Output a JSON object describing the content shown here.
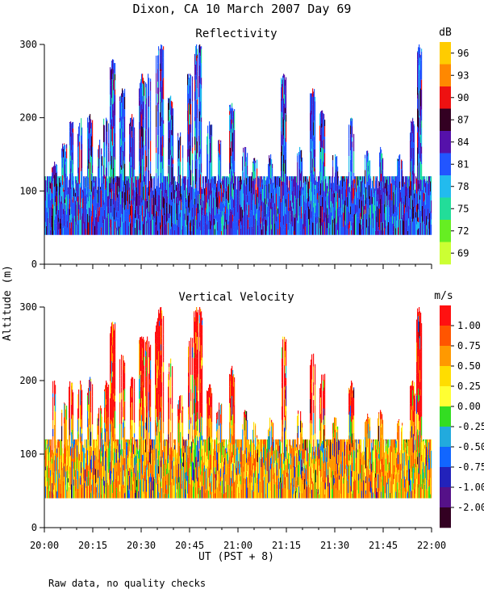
{
  "figure": {
    "title": "Dixon, CA 10 March 2007  Day  69",
    "ylabel": "Altitude (m)",
    "xlabel": "UT  (PST + 8)",
    "footnote": "Raw data, no quality checks"
  },
  "chart_data": [
    {
      "type": "heatmap",
      "title": "Reflectivity",
      "colorbar_unit": "dB",
      "xlim": [
        0,
        120
      ],
      "ylim": [
        0,
        300
      ],
      "x_ticks": [
        0,
        15,
        30,
        45,
        60,
        75,
        90,
        105,
        120
      ],
      "y_ticks": [
        0,
        100,
        200,
        300
      ],
      "y_tick_labels": [
        "0",
        "100",
        "200",
        "300"
      ],
      "colorbar_labels": [
        "69",
        "72",
        "75",
        "78",
        "81",
        "84",
        "87",
        "90",
        "93",
        "96"
      ],
      "colorbar_colors": [
        "#ccff33",
        "#66ee22",
        "#22dd99",
        "#22bbee",
        "#2255ff",
        "#5511aa",
        "#330022",
        "#ee1111",
        "#ff8800",
        "#ffcc00"
      ],
      "data_base_altitude": 40,
      "typical_top_altitude": 120,
      "plume_peaks": [
        {
          "time": 3,
          "top": 140
        },
        {
          "time": 6,
          "top": 165
        },
        {
          "time": 8,
          "top": 195
        },
        {
          "time": 11,
          "top": 200
        },
        {
          "time": 14,
          "top": 205
        },
        {
          "time": 17,
          "top": 170
        },
        {
          "time": 19,
          "top": 200
        },
        {
          "time": 21,
          "top": 280
        },
        {
          "time": 24,
          "top": 240
        },
        {
          "time": 27,
          "top": 205
        },
        {
          "time": 30,
          "top": 260
        },
        {
          "time": 32,
          "top": 260
        },
        {
          "time": 35,
          "top": 285
        },
        {
          "time": 36,
          "top": 300
        },
        {
          "time": 39,
          "top": 230
        },
        {
          "time": 42,
          "top": 180
        },
        {
          "time": 45,
          "top": 260
        },
        {
          "time": 47,
          "top": 300
        },
        {
          "time": 48,
          "top": 300
        },
        {
          "time": 51,
          "top": 195
        },
        {
          "time": 54,
          "top": 170
        },
        {
          "time": 58,
          "top": 220
        },
        {
          "time": 62,
          "top": 160
        },
        {
          "time": 65,
          "top": 145
        },
        {
          "time": 70,
          "top": 150
        },
        {
          "time": 74,
          "top": 260
        },
        {
          "time": 79,
          "top": 160
        },
        {
          "time": 83,
          "top": 240
        },
        {
          "time": 86,
          "top": 210
        },
        {
          "time": 90,
          "top": 150
        },
        {
          "time": 95,
          "top": 200
        },
        {
          "time": 100,
          "top": 155
        },
        {
          "time": 104,
          "top": 160
        },
        {
          "time": 110,
          "top": 150
        },
        {
          "time": 114,
          "top": 200
        },
        {
          "time": 116,
          "top": 300
        }
      ]
    },
    {
      "type": "heatmap",
      "title": "Vertical Velocity",
      "colorbar_unit": "m/s",
      "xlim": [
        0,
        120
      ],
      "ylim": [
        0,
        300
      ],
      "x_ticks": [
        0,
        15,
        30,
        45,
        60,
        75,
        90,
        105,
        120
      ],
      "x_tick_labels": [
        "20:00",
        "20:15",
        "20:30",
        "20:45",
        "21:00",
        "21:15",
        "21:30",
        "21:45",
        "22:00"
      ],
      "y_ticks": [
        0,
        100,
        200,
        300
      ],
      "y_tick_labels": [
        "0",
        "100",
        "200",
        "300"
      ],
      "colorbar_labels": [
        "1.00",
        "0.75",
        "0.50",
        "0.25",
        "0.00",
        "-0.25",
        "-0.50",
        "-0.75",
        "-1.00",
        "-2.00"
      ],
      "colorbar_colors": [
        "#ff1111",
        "#ff5500",
        "#ff9900",
        "#ffdd00",
        "#ffff33",
        "#33dd22",
        "#22aadd",
        "#1166ff",
        "#2222bb",
        "#551188",
        "#330022"
      ],
      "data_base_altitude": 40,
      "typical_top_altitude": 120,
      "plume_peaks": [
        {
          "time": 3,
          "top": 200
        },
        {
          "time": 6,
          "top": 170
        },
        {
          "time": 8,
          "top": 200
        },
        {
          "time": 11,
          "top": 200
        },
        {
          "time": 14,
          "top": 205
        },
        {
          "time": 17,
          "top": 170
        },
        {
          "time": 19,
          "top": 200
        },
        {
          "time": 21,
          "top": 280
        },
        {
          "time": 24,
          "top": 240
        },
        {
          "time": 27,
          "top": 205
        },
        {
          "time": 30,
          "top": 260
        },
        {
          "time": 32,
          "top": 260
        },
        {
          "time": 35,
          "top": 285
        },
        {
          "time": 36,
          "top": 300
        },
        {
          "time": 39,
          "top": 230
        },
        {
          "time": 42,
          "top": 180
        },
        {
          "time": 45,
          "top": 260
        },
        {
          "time": 47,
          "top": 300
        },
        {
          "time": 48,
          "top": 300
        },
        {
          "time": 51,
          "top": 195
        },
        {
          "time": 54,
          "top": 170
        },
        {
          "time": 58,
          "top": 220
        },
        {
          "time": 62,
          "top": 160
        },
        {
          "time": 65,
          "top": 145
        },
        {
          "time": 70,
          "top": 150
        },
        {
          "time": 74,
          "top": 260
        },
        {
          "time": 79,
          "top": 160
        },
        {
          "time": 83,
          "top": 240
        },
        {
          "time": 86,
          "top": 210
        },
        {
          "time": 90,
          "top": 150
        },
        {
          "time": 95,
          "top": 200
        },
        {
          "time": 100,
          "top": 155
        },
        {
          "time": 104,
          "top": 160
        },
        {
          "time": 110,
          "top": 150
        },
        {
          "time": 114,
          "top": 200
        },
        {
          "time": 116,
          "top": 300
        }
      ]
    }
  ]
}
